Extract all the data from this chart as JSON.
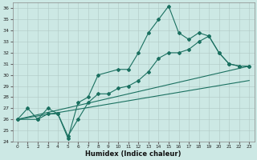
{
  "xlabel": "Humidex (Indice chaleur)",
  "bg_color": "#cce8e4",
  "line_color": "#1a7060",
  "xlim": [
    -0.5,
    23.5
  ],
  "ylim": [
    24,
    36.5
  ],
  "yticks": [
    24,
    25,
    26,
    27,
    28,
    29,
    30,
    31,
    32,
    33,
    34,
    35,
    36
  ],
  "xticks": [
    0,
    1,
    2,
    3,
    4,
    5,
    6,
    7,
    8,
    9,
    10,
    11,
    12,
    13,
    14,
    15,
    16,
    17,
    18,
    19,
    20,
    21,
    22,
    23
  ],
  "line1_x": [
    0,
    1,
    2,
    3,
    4,
    5,
    6,
    7,
    8,
    10,
    11,
    12,
    13,
    14,
    15,
    16,
    17,
    18,
    19,
    20,
    21,
    22,
    23
  ],
  "line1_y": [
    26.0,
    27.0,
    26.0,
    26.5,
    26.5,
    24.3,
    27.5,
    28.0,
    30.0,
    30.5,
    30.5,
    32.0,
    33.8,
    35.0,
    36.2,
    33.8,
    33.2,
    33.8,
    33.5,
    32.0,
    31.0,
    30.8,
    30.8
  ],
  "line2_x": [
    0,
    2,
    3,
    4,
    5,
    6,
    7,
    8,
    9,
    10,
    11,
    12,
    13,
    14,
    15,
    16,
    17,
    18,
    19,
    20,
    21,
    22,
    23
  ],
  "line2_y": [
    26.0,
    26.0,
    27.0,
    26.5,
    24.5,
    26.0,
    27.5,
    28.3,
    28.3,
    28.8,
    29.0,
    29.5,
    30.3,
    31.5,
    32.0,
    32.0,
    32.3,
    33.0,
    33.5,
    32.0,
    31.0,
    30.8,
    30.8
  ],
  "line3_x": [
    0,
    23
  ],
  "line3_y": [
    26.0,
    30.8
  ],
  "line4_x": [
    0,
    23
  ],
  "line4_y": [
    26.0,
    29.5
  ],
  "marker_indices_l1": [
    0,
    1,
    2,
    3,
    4,
    5,
    6,
    7,
    8,
    10,
    11,
    12,
    13,
    14,
    15,
    16,
    17,
    18,
    19,
    20,
    21,
    22,
    23
  ],
  "marker_indices_l2": [
    0,
    2,
    3,
    4,
    5,
    6,
    7,
    14,
    15,
    16,
    20,
    21,
    22,
    23
  ]
}
